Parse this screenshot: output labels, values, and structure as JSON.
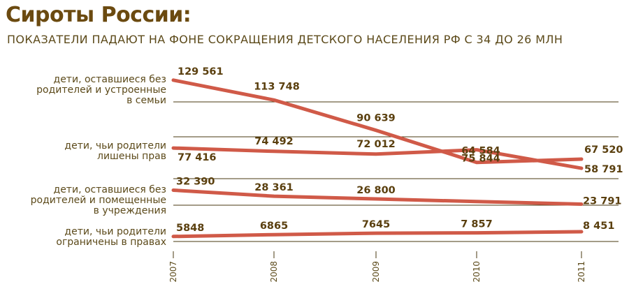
{
  "header": {
    "title": "Сироты России:",
    "subtitle": "ПОКАЗАТЕЛИ ПАДАЮТ НА ФОНЕ СОКРАЩЕНИЯ ДЕТСКОГО НАСЕЛЕНИЯ РФ С 34 ДО 26 МЛН"
  },
  "colors": {
    "line": "#d05a48",
    "title": "#6b4a10",
    "text": "#5c4a1a",
    "grid": "#4a3a10"
  },
  "chart_data": {
    "type": "line",
    "title": "Сироты России:",
    "subtitle": "ПОКАЗАТЕЛИ ПАДАЮТ НА ФОНЕ СОКРАЩЕНИЯ ДЕТСКОГО НАСЕЛЕНИЯ РФ С 34 ДО 26 МЛН",
    "x": [
      "2007",
      "2008",
      "2009",
      "2010",
      "2011"
    ],
    "series": [
      {
        "name": "дети, оставшиеся без родителей и устроенные в семьи",
        "name_lines": [
          "дети, оставшиеся без",
          "родителей и устроенные",
          "в семьи"
        ],
        "values": [
          129561,
          113748,
          90639,
          64584,
          67520
        ],
        "labels": [
          "129 561",
          "113 748",
          "90 639",
          "64 584",
          "67 520"
        ]
      },
      {
        "name": "дети, чьи родители лишены прав",
        "name_lines": [
          "дети, чьи родители",
          "лишены прав"
        ],
        "values": [
          77416,
          74492,
          72012,
          75844,
          58791
        ],
        "labels": [
          "77 416",
          "74 492",
          "72 012",
          "75 844",
          "58 791"
        ]
      },
      {
        "name": "дети, оставшиеся без родителей и помещенные в учреждения",
        "name_lines": [
          "дети, оставшиеся без",
          "родителей и помещенные",
          "в учреждения"
        ],
        "values": [
          32390,
          28361,
          26800,
          null,
          23791
        ],
        "labels": [
          "32 390",
          "28 361",
          "26 800",
          "",
          "23 791"
        ]
      },
      {
        "name": "дети, чьи родители ограничены в правах",
        "name_lines": [
          "дети, чьи родители",
          "ограничены в правах"
        ],
        "values": [
          5848,
          6865,
          7645,
          7857,
          8451
        ],
        "labels": [
          "5848",
          "6865",
          "7645",
          "7 857",
          "8 451"
        ]
      }
    ],
    "grid": true
  }
}
